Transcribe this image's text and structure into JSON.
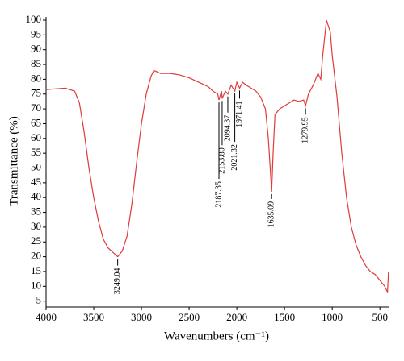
{
  "chart_data": {
    "type": "line",
    "xlabel": "Wavenumbers (cm⁻¹)",
    "ylabel": "Transmittance (%)",
    "color": "#e03a3a",
    "x": [
      4000,
      3800,
      3700,
      3650,
      3600,
      3550,
      3500,
      3450,
      3400,
      3350,
      3300,
      3249.04,
      3200,
      3150,
      3100,
      3050,
      3000,
      2950,
      2900,
      2870,
      2800,
      2700,
      2600,
      2500,
      2400,
      2300,
      2250,
      2200,
      2187.35,
      2160,
      2153.8,
      2120,
      2094.37,
      2060,
      2021.32,
      2000,
      1971.41,
      1940,
      1900,
      1850,
      1800,
      1750,
      1700,
      1670,
      1650,
      1635.09,
      1620,
      1600,
      1550,
      1500,
      1450,
      1400,
      1350,
      1300,
      1279.95,
      1250,
      1200,
      1150,
      1120,
      1100,
      1080,
      1060,
      1040,
      1020,
      1000,
      950,
      900,
      850,
      800,
      750,
      700,
      650,
      600,
      550,
      500,
      450,
      420,
      410
    ],
    "values": [
      76.5,
      77,
      76,
      72,
      62,
      50,
      40,
      32,
      26,
      23,
      21.5,
      20,
      22,
      27,
      38,
      52,
      65,
      75,
      81,
      83,
      82,
      82,
      81.5,
      80.5,
      79,
      77.5,
      76,
      75,
      73,
      76,
      73.5,
      76,
      75,
      78,
      76,
      79,
      77,
      79,
      78,
      77,
      76,
      74,
      70,
      60,
      50,
      42,
      55,
      68,
      70,
      71,
      72,
      73,
      72.5,
      73,
      71,
      75,
      78,
      82,
      80,
      88,
      94,
      100,
      98,
      96,
      88,
      74,
      55,
      40,
      30,
      24,
      20,
      17,
      15,
      14,
      12,
      10,
      8,
      15
    ],
    "xlim": [
      4000,
      400
    ],
    "ylim": [
      3,
      100
    ],
    "xticks": [
      4000,
      3500,
      3000,
      2500,
      2000,
      1500,
      1000,
      500
    ],
    "yticks": [
      5,
      10,
      15,
      20,
      25,
      30,
      35,
      40,
      45,
      50,
      55,
      60,
      65,
      70,
      75,
      80,
      85,
      90,
      95,
      100
    ],
    "annotations": [
      {
        "label": "3249.04",
        "x": 3249.04,
        "y": 20
      },
      {
        "label": "2187.35",
        "x": 2187.35,
        "y": 73
      },
      {
        "label": "2153.80",
        "x": 2153.8,
        "y": 73.5
      },
      {
        "label": "2094.37",
        "x": 2094.37,
        "y": 75
      },
      {
        "label": "2021.32",
        "x": 2021.32,
        "y": 76
      },
      {
        "label": "1971.41",
        "x": 1971.41,
        "y": 77
      },
      {
        "label": "1635.09",
        "x": 1635.09,
        "y": 42
      },
      {
        "label": "1279.95",
        "x": 1279.95,
        "y": 71
      }
    ]
  }
}
